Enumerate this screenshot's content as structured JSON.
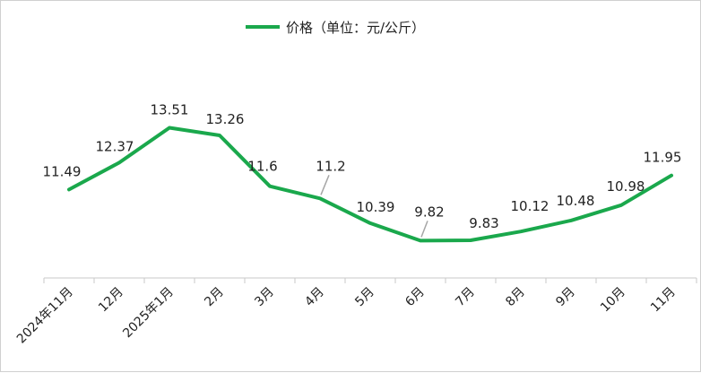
{
  "chart_data": {
    "type": "line",
    "categories": [
      "2024年11月",
      "12月",
      "2025年1月",
      "2月",
      "3月",
      "4月",
      "5月",
      "6月",
      "7月",
      "8月",
      "9月",
      "10月",
      "11月"
    ],
    "series": [
      {
        "name": "价格（单位：元/公斤）",
        "values": [
          11.49,
          12.37,
          13.51,
          13.26,
          11.6,
          11.2,
          10.39,
          9.82,
          9.83,
          10.12,
          10.48,
          10.98,
          11.95
        ],
        "labels": [
          "11.49",
          "12.37",
          "13.51",
          "13.26",
          "11.6",
          "11.2",
          "10.39",
          "9.82",
          "9.83",
          "10.12",
          "10.48",
          "10.98",
          "11.95"
        ]
      }
    ],
    "title": "",
    "xlabel": "",
    "ylabel": "",
    "ylim": [
      8.6,
      15.9
    ],
    "grid": false,
    "legend_position": "top",
    "colors": {
      "line": "#1aa84c",
      "axis": "#c8c8c8",
      "leader": "#a6a6a6"
    }
  }
}
